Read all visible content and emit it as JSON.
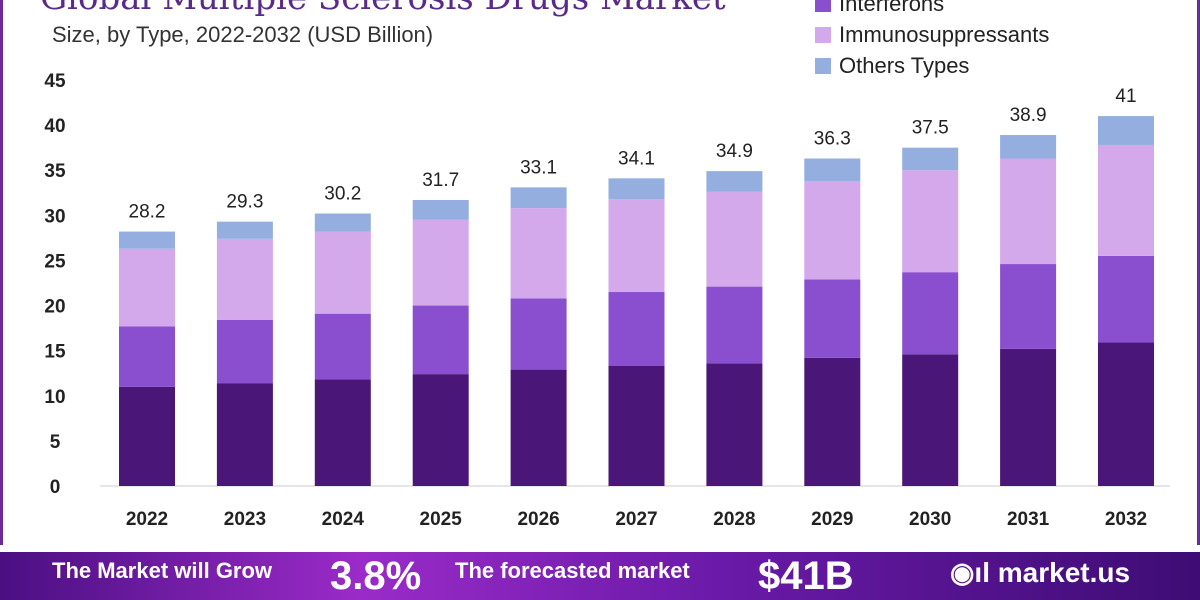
{
  "chart_data": {
    "type": "bar",
    "stacked": true,
    "title": "Global Multiple Sclerosis Drugs Market",
    "subtitle": "Size, by Type, 2022-2032 (USD Billion)",
    "categories": [
      "2022",
      "2023",
      "2024",
      "2025",
      "2026",
      "2027",
      "2028",
      "2029",
      "2030",
      "2031",
      "2032"
    ],
    "series": [
      {
        "name": "",
        "color": "#4a1677",
        "values": [
          11.0,
          11.4,
          11.8,
          12.4,
          12.9,
          13.3,
          13.6,
          14.2,
          14.6,
          15.2,
          15.9
        ]
      },
      {
        "name": "Interferons",
        "color": "#8a4fcf",
        "values": [
          6.7,
          7.0,
          7.3,
          7.6,
          7.9,
          8.2,
          8.5,
          8.7,
          9.1,
          9.4,
          9.6
        ]
      },
      {
        "name": "Immunosuppressants",
        "color": "#d4a9ec",
        "values": [
          8.6,
          9.0,
          9.1,
          9.5,
          10.0,
          10.3,
          10.5,
          10.9,
          11.3,
          11.7,
          12.3
        ]
      },
      {
        "name": "Others Types",
        "color": "#94aee0",
        "values": [
          1.9,
          1.9,
          2.0,
          2.2,
          2.3,
          2.3,
          2.3,
          2.5,
          2.5,
          2.6,
          3.2
        ]
      }
    ],
    "totals": [
      "28.2",
      "29.3",
      "30.2",
      "31.7",
      "33.1",
      "34.1",
      "34.9",
      "36.3",
      "37.5",
      "38.9",
      "41"
    ],
    "ylim": [
      0,
      45
    ],
    "yticks": [
      0,
      5,
      10,
      15,
      20,
      25,
      30,
      35,
      40,
      45
    ],
    "grid": false,
    "legend": "top-right"
  },
  "banner": {
    "grow_text": "The Market will Grow",
    "cagr": "3.8%",
    "forecast_text": "The forecasted market",
    "value": "$41B",
    "brand": "market.us"
  }
}
